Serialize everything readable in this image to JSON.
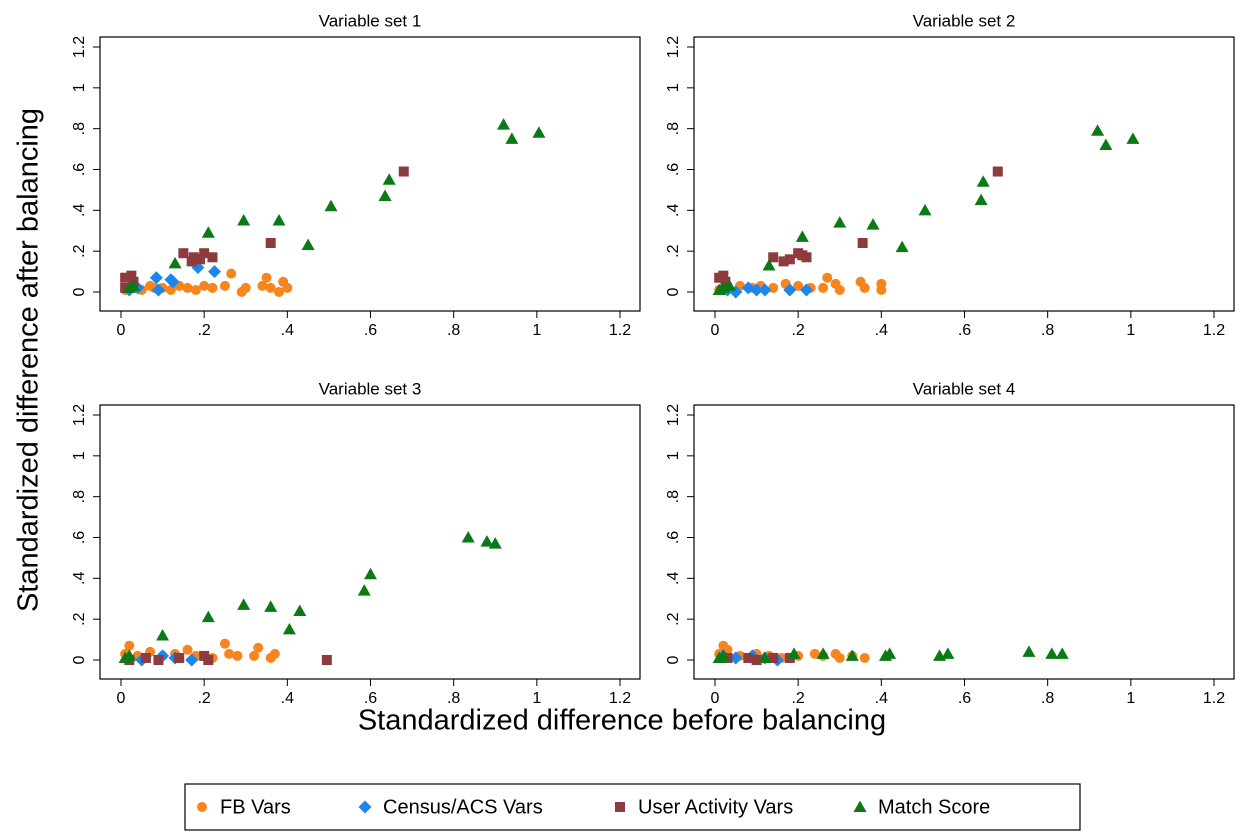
{
  "xlabel": "Standardized difference before balancing",
  "ylabel": "Standardized difference after balancing",
  "chart_data": [
    {
      "type": "scatter",
      "title": "Variable set 1",
      "xlim": [
        0,
        1.2
      ],
      "ylim": [
        0,
        1.2
      ],
      "xticks": [
        0,
        {
          "value": 0.2,
          "label": ".2"
        },
        {
          "value": 0.4,
          "label": ".4"
        },
        {
          "value": 0.6,
          "label": ".6"
        },
        {
          "value": 0.8,
          "label": ".8"
        },
        1,
        1.2
      ],
      "yticks": [
        0,
        {
          "value": 0.2,
          "label": ".2"
        },
        {
          "value": 0.4,
          "label": ".4"
        },
        {
          "value": 0.6,
          "label": ".6"
        },
        {
          "value": 0.8,
          "label": ".8"
        },
        1,
        1.2
      ],
      "series": [
        {
          "name": "FB Vars",
          "color": "#f7851d",
          "marker": "circle",
          "x": [
            0.01,
            0.03,
            0.05,
            0.07,
            0.08,
            0.1,
            0.12,
            0.14,
            0.16,
            0.18,
            0.2,
            0.22,
            0.25,
            0.265,
            0.29,
            0.3,
            0.34,
            0.35,
            0.36,
            0.38,
            0.39,
            0.4
          ],
          "values": [
            0.01,
            0.02,
            0.01,
            0.03,
            0.02,
            0.02,
            0.01,
            0.03,
            0.02,
            0.01,
            0.03,
            0.02,
            0.03,
            0.09,
            0,
            0.02,
            0.03,
            0.07,
            0.02,
            0,
            0.05,
            0.02
          ]
        },
        {
          "name": "Census/ACS Vars",
          "color": "#1a86f0",
          "marker": "diamond",
          "x": [
            0.02,
            0.04,
            0.085,
            0.09,
            0.12,
            0.125,
            0.185,
            0.225
          ],
          "values": [
            0.01,
            0.02,
            0.07,
            0.01,
            0.06,
            0.05,
            0.12,
            0.1
          ]
        },
        {
          "name": "User Activity Vars",
          "color": "#8e3b3f",
          "marker": "square",
          "x": [
            0.01,
            0.01,
            0.025,
            0.03,
            0.15,
            0.17,
            0.175,
            0.19,
            0.2,
            0.22,
            0.36,
            0.68
          ],
          "values": [
            0.02,
            0.07,
            0.08,
            0.05,
            0.19,
            0.15,
            0.17,
            0.16,
            0.19,
            0.17,
            0.24,
            0.59
          ]
        },
        {
          "name": "Match Score",
          "color": "#0b7a16",
          "marker": "triangle",
          "x": [
            0.02,
            0.03,
            0.13,
            0.21,
            0.295,
            0.38,
            0.45,
            0.505,
            0.635,
            0.645,
            0.92,
            0.94,
            1.005
          ],
          "values": [
            0.02,
            0.03,
            0.14,
            0.29,
            0.35,
            0.35,
            0.23,
            0.42,
            0.47,
            0.55,
            0.82,
            0.75,
            0.78
          ]
        }
      ]
    },
    {
      "type": "scatter",
      "title": "Variable set 2",
      "xlim": [
        0,
        1.2
      ],
      "ylim": [
        0,
        1.2
      ],
      "xticks": [
        0,
        {
          "value": 0.2,
          "label": ".2"
        },
        {
          "value": 0.4,
          "label": ".4"
        },
        {
          "value": 0.6,
          "label": ".6"
        },
        {
          "value": 0.8,
          "label": ".8"
        },
        1,
        1.2
      ],
      "yticks": [
        0,
        {
          "value": 0.2,
          "label": ".2"
        },
        {
          "value": 0.4,
          "label": ".4"
        },
        {
          "value": 0.6,
          "label": ".6"
        },
        {
          "value": 0.8,
          "label": ".8"
        },
        1,
        1.2
      ],
      "series": [
        {
          "name": "FB Vars",
          "color": "#f7851d",
          "marker": "circle",
          "x": [
            0.01,
            0.03,
            0.06,
            0.09,
            0.11,
            0.14,
            0.17,
            0.2,
            0.23,
            0.26,
            0.27,
            0.29,
            0.3,
            0.35,
            0.36,
            0.4,
            0.4
          ],
          "values": [
            0.01,
            0.02,
            0.03,
            0.02,
            0.03,
            0.02,
            0.04,
            0.03,
            0.02,
            0.02,
            0.07,
            0.04,
            0.01,
            0.05,
            0.02,
            0.01,
            0.04
          ]
        },
        {
          "name": "Census/ACS Vars",
          "color": "#1a86f0",
          "marker": "diamond",
          "x": [
            0.03,
            0.05,
            0.08,
            0.1,
            0.12,
            0.18,
            0.22
          ],
          "values": [
            0.01,
            0,
            0.02,
            0.01,
            0.01,
            0.01,
            0.01
          ]
        },
        {
          "name": "User Activity Vars",
          "color": "#8e3b3f",
          "marker": "square",
          "x": [
            0.01,
            0.02,
            0.025,
            0.14,
            0.165,
            0.18,
            0.2,
            0.21,
            0.22,
            0.355,
            0.68
          ],
          "values": [
            0.07,
            0.08,
            0.05,
            0.17,
            0.15,
            0.16,
            0.19,
            0.18,
            0.17,
            0.24,
            0.59
          ]
        },
        {
          "name": "Match Score",
          "color": "#0b7a16",
          "marker": "triangle",
          "x": [
            0.01,
            0.02,
            0.035,
            0.13,
            0.21,
            0.3,
            0.38,
            0.45,
            0.505,
            0.64,
            0.645,
            0.92,
            0.94,
            1.005
          ],
          "values": [
            0.01,
            0.02,
            0.03,
            0.13,
            0.27,
            0.34,
            0.33,
            0.22,
            0.4,
            0.45,
            0.54,
            0.79,
            0.72,
            0.75
          ]
        }
      ]
    },
    {
      "type": "scatter",
      "title": "Variable set 3",
      "xlim": [
        0,
        1.2
      ],
      "ylim": [
        0,
        1.2
      ],
      "xticks": [
        0,
        {
          "value": 0.2,
          "label": ".2"
        },
        {
          "value": 0.4,
          "label": ".4"
        },
        {
          "value": 0.6,
          "label": ".6"
        },
        {
          "value": 0.8,
          "label": ".8"
        },
        1,
        1.2
      ],
      "yticks": [
        0,
        {
          "value": 0.2,
          "label": ".2"
        },
        {
          "value": 0.4,
          "label": ".4"
        },
        {
          "value": 0.6,
          "label": ".6"
        },
        {
          "value": 0.8,
          "label": ".8"
        },
        1,
        1.2
      ],
      "series": [
        {
          "name": "FB Vars",
          "color": "#f7851d",
          "marker": "circle",
          "x": [
            0.01,
            0.02,
            0.04,
            0.07,
            0.1,
            0.13,
            0.16,
            0.18,
            0.22,
            0.25,
            0.26,
            0.28,
            0.32,
            0.33,
            0.36,
            0.37
          ],
          "values": [
            0.03,
            0.07,
            0.02,
            0.04,
            0.02,
            0.03,
            0.05,
            0.02,
            0.01,
            0.08,
            0.03,
            0.02,
            0.02,
            0.06,
            0.01,
            0.03
          ]
        },
        {
          "name": "Census/ACS Vars",
          "color": "#1a86f0",
          "marker": "diamond",
          "x": [
            0.02,
            0.05,
            0.1,
            0.13,
            0.17
          ],
          "values": [
            0.01,
            0,
            0.02,
            0.01,
            0
          ]
        },
        {
          "name": "User Activity Vars",
          "color": "#8e3b3f",
          "marker": "square",
          "x": [
            0.02,
            0.06,
            0.09,
            0.14,
            0.2,
            0.21,
            0.495
          ],
          "values": [
            0,
            0.01,
            0,
            0.01,
            0.02,
            0,
            0
          ]
        },
        {
          "name": "Match Score",
          "color": "#0b7a16",
          "marker": "triangle",
          "x": [
            0.01,
            0.02,
            0.1,
            0.21,
            0.295,
            0.36,
            0.405,
            0.43,
            0.585,
            0.6,
            0.835,
            0.88,
            0.9
          ],
          "values": [
            0.01,
            0.02,
            0.12,
            0.21,
            0.27,
            0.26,
            0.15,
            0.24,
            0.34,
            0.42,
            0.6,
            0.58,
            0.57
          ]
        }
      ]
    },
    {
      "type": "scatter",
      "title": "Variable set 4",
      "xlim": [
        0,
        1.2
      ],
      "ylim": [
        0,
        1.2
      ],
      "xticks": [
        0,
        {
          "value": 0.2,
          "label": ".2"
        },
        {
          "value": 0.4,
          "label": ".4"
        },
        {
          "value": 0.6,
          "label": ".6"
        },
        {
          "value": 0.8,
          "label": ".8"
        },
        1,
        1.2
      ],
      "yticks": [
        0,
        {
          "value": 0.2,
          "label": ".2"
        },
        {
          "value": 0.4,
          "label": ".4"
        },
        {
          "value": 0.6,
          "label": ".6"
        },
        {
          "value": 0.8,
          "label": ".8"
        },
        1,
        1.2
      ],
      "series": [
        {
          "name": "FB Vars",
          "color": "#f7851d",
          "marker": "circle",
          "x": [
            0.01,
            0.02,
            0.03,
            0.06,
            0.1,
            0.13,
            0.16,
            0.2,
            0.24,
            0.26,
            0.29,
            0.3,
            0.33,
            0.36
          ],
          "values": [
            0.03,
            0.07,
            0.05,
            0.02,
            0.03,
            0.02,
            0.01,
            0.02,
            0.03,
            0.02,
            0.03,
            0.01,
            0.02,
            0.01
          ]
        },
        {
          "name": "Census/ACS Vars",
          "color": "#1a86f0",
          "marker": "diamond",
          "x": [
            0.02,
            0.05,
            0.09,
            0.12,
            0.15
          ],
          "values": [
            0.02,
            0.01,
            0.02,
            0.01,
            0
          ]
        },
        {
          "name": "User Activity Vars",
          "color": "#8e3b3f",
          "marker": "square",
          "x": [
            0.03,
            0.08,
            0.1,
            0.14,
            0.18
          ],
          "values": [
            0.01,
            0.01,
            0,
            0.01,
            0.01
          ]
        },
        {
          "name": "Match Score",
          "color": "#0b7a16",
          "marker": "triangle",
          "x": [
            0.01,
            0.02,
            0.12,
            0.19,
            0.26,
            0.33,
            0.41,
            0.42,
            0.54,
            0.56,
            0.755,
            0.81,
            0.835
          ],
          "values": [
            0.01,
            0.02,
            0.01,
            0.03,
            0.03,
            0.02,
            0.02,
            0.03,
            0.02,
            0.03,
            0.04,
            0.03,
            0.03
          ]
        }
      ]
    }
  ]
}
